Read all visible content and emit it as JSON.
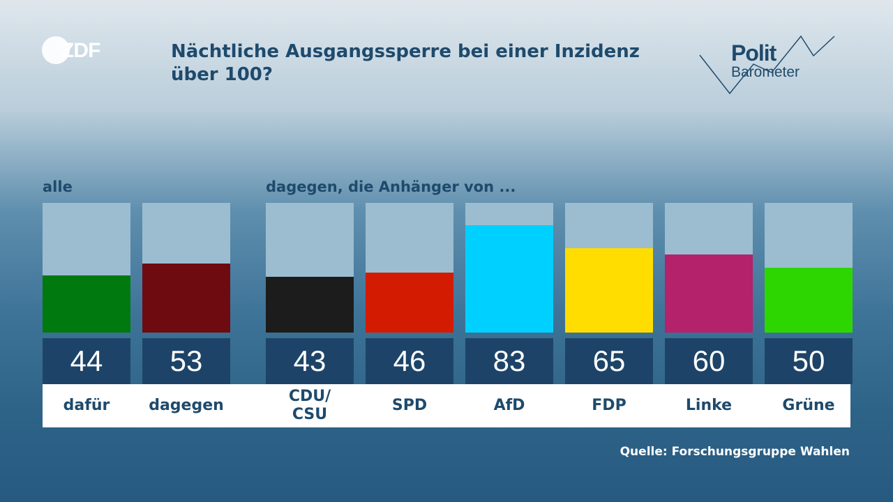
{
  "brand": {
    "logo_text": "ZDF",
    "polit_word": "Polit",
    "barometer_word": "Barometer"
  },
  "chart_data": {
    "type": "bar",
    "title": "Nächtliche Ausgangssperre bei einer Inzidenz\nüber 100?",
    "ylim": [
      0,
      100
    ],
    "groups": [
      {
        "label": "alle",
        "bars": [
          {
            "category": "dafür",
            "value": 44,
            "color": "#007a0e"
          },
          {
            "category": "dagegen",
            "value": 53,
            "color": "#6e0b10"
          }
        ]
      },
      {
        "label": "dagegen, die Anhänger von ...",
        "bars": [
          {
            "category": "CDU/\nCSU",
            "value": 43,
            "color": "#1c1c1c"
          },
          {
            "category": "SPD",
            "value": 46,
            "color": "#d21b00"
          },
          {
            "category": "AfD",
            "value": 83,
            "color": "#00d0ff"
          },
          {
            "category": "FDP",
            "value": 65,
            "color": "#ffdd00"
          },
          {
            "category": "Linke",
            "value": 60,
            "color": "#b3226a"
          },
          {
            "category": "Grüne",
            "value": 50,
            "color": "#2dd600"
          }
        ]
      }
    ],
    "source": "Quelle: Forschungsgruppe Wahlen"
  }
}
